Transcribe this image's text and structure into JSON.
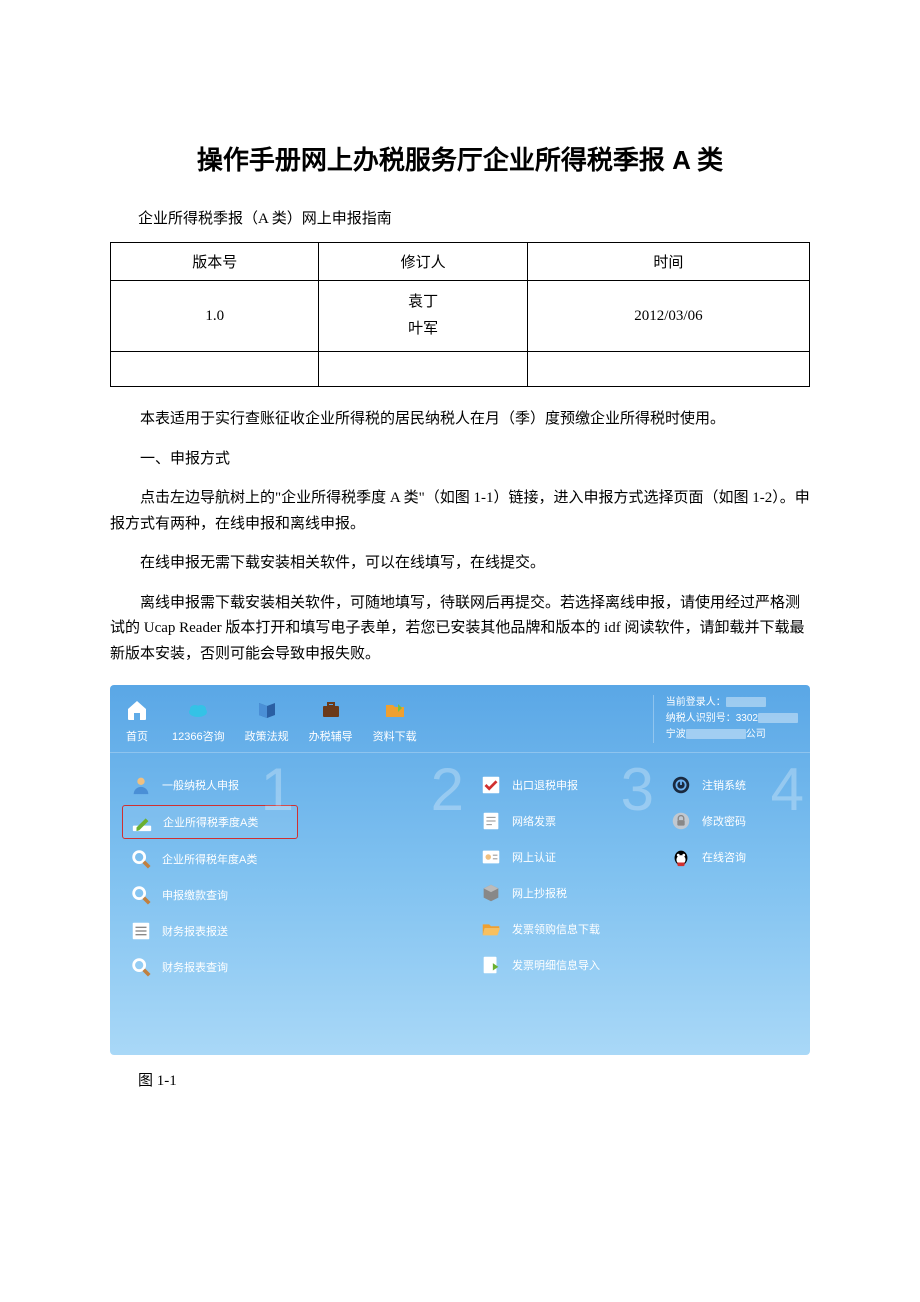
{
  "document": {
    "title": "操作手册网上办税服务厅企业所得税季报 A 类",
    "subtitle": "企业所得税季报（A 类）网上申报指南",
    "caption_1_1": "图 1-1"
  },
  "version_table": {
    "headers": [
      "版本号",
      "修订人",
      "时间"
    ],
    "rows": [
      {
        "version": "1.0",
        "editors": "袁丁\n叶军",
        "date": "2012/03/06"
      },
      {
        "version": "",
        "editors": "",
        "date": ""
      }
    ]
  },
  "paragraphs": {
    "p1": "本表适用于实行查账征收企业所得税的居民纳税人在月（季）度预缴企业所得税时使用。",
    "h1": "一、申报方式",
    "p2": "点击左边导航树上的\"企业所得税季度 A 类\"（如图 1-1）链接，进入申报方式选择页面（如图 1-2）。申报方式有两种，在线申报和离线申报。",
    "p3": "在线申报无需下载安装相关软件，可以在线填写，在线提交。",
    "p4": "离线申报需下载安装相关软件，可随地填写，待联网后再提交。若选择离线申报，请使用经过严格测试的 Ucap Reader 版本打开和填写电子表单，若您已安装其他品牌和版本的 idf 阅读软件，请卸载并下载最新版本安装，否则可能会导致申报失败。"
  },
  "screenshot": {
    "bg_gradient": [
      "#5aa7e6",
      "#a9d8f7"
    ],
    "highlight_border": "#d03030",
    "toolbar": [
      {
        "label": "首页",
        "icon": "home"
      },
      {
        "label": "12366咨询",
        "icon": "cloud"
      },
      {
        "label": "政策法规",
        "icon": "book"
      },
      {
        "label": "办税辅导",
        "icon": "suitcase"
      },
      {
        "label": "资料下载",
        "icon": "folder"
      }
    ],
    "user_info": {
      "line1": "当前登录人：",
      "line2_prefix": "纳税人识别号：3302",
      "line3_prefix": "宁波",
      "line3_suffix": "公司"
    },
    "columns": [
      {
        "number": "1",
        "items": [
          {
            "label": "一般纳税人申报",
            "icon": "user"
          },
          {
            "label": "企业所得税季度A类",
            "icon": "pencil",
            "active": true
          },
          {
            "label": "企业所得税年度A类",
            "icon": "search"
          },
          {
            "label": "申报缴款查询",
            "icon": "search"
          },
          {
            "label": "财务报表报送",
            "icon": "list"
          },
          {
            "label": "财务报表查询",
            "icon": "search"
          }
        ]
      },
      {
        "number": "2",
        "items": []
      },
      {
        "number": "3",
        "items": [
          {
            "label": "出口退税申报",
            "icon": "check"
          },
          {
            "label": "网络发票",
            "icon": "invoice"
          },
          {
            "label": "网上认证",
            "icon": "cert"
          },
          {
            "label": "网上抄报税",
            "icon": "cube"
          },
          {
            "label": "发票领购信息下载",
            "icon": "folderopen"
          },
          {
            "label": "发票明细信息导入",
            "icon": "import"
          }
        ]
      },
      {
        "number": "4",
        "items": [
          {
            "label": "注销系统",
            "icon": "power"
          },
          {
            "label": "修改密码",
            "icon": "lock"
          },
          {
            "label": "在线咨询",
            "icon": "qq"
          }
        ]
      }
    ]
  }
}
